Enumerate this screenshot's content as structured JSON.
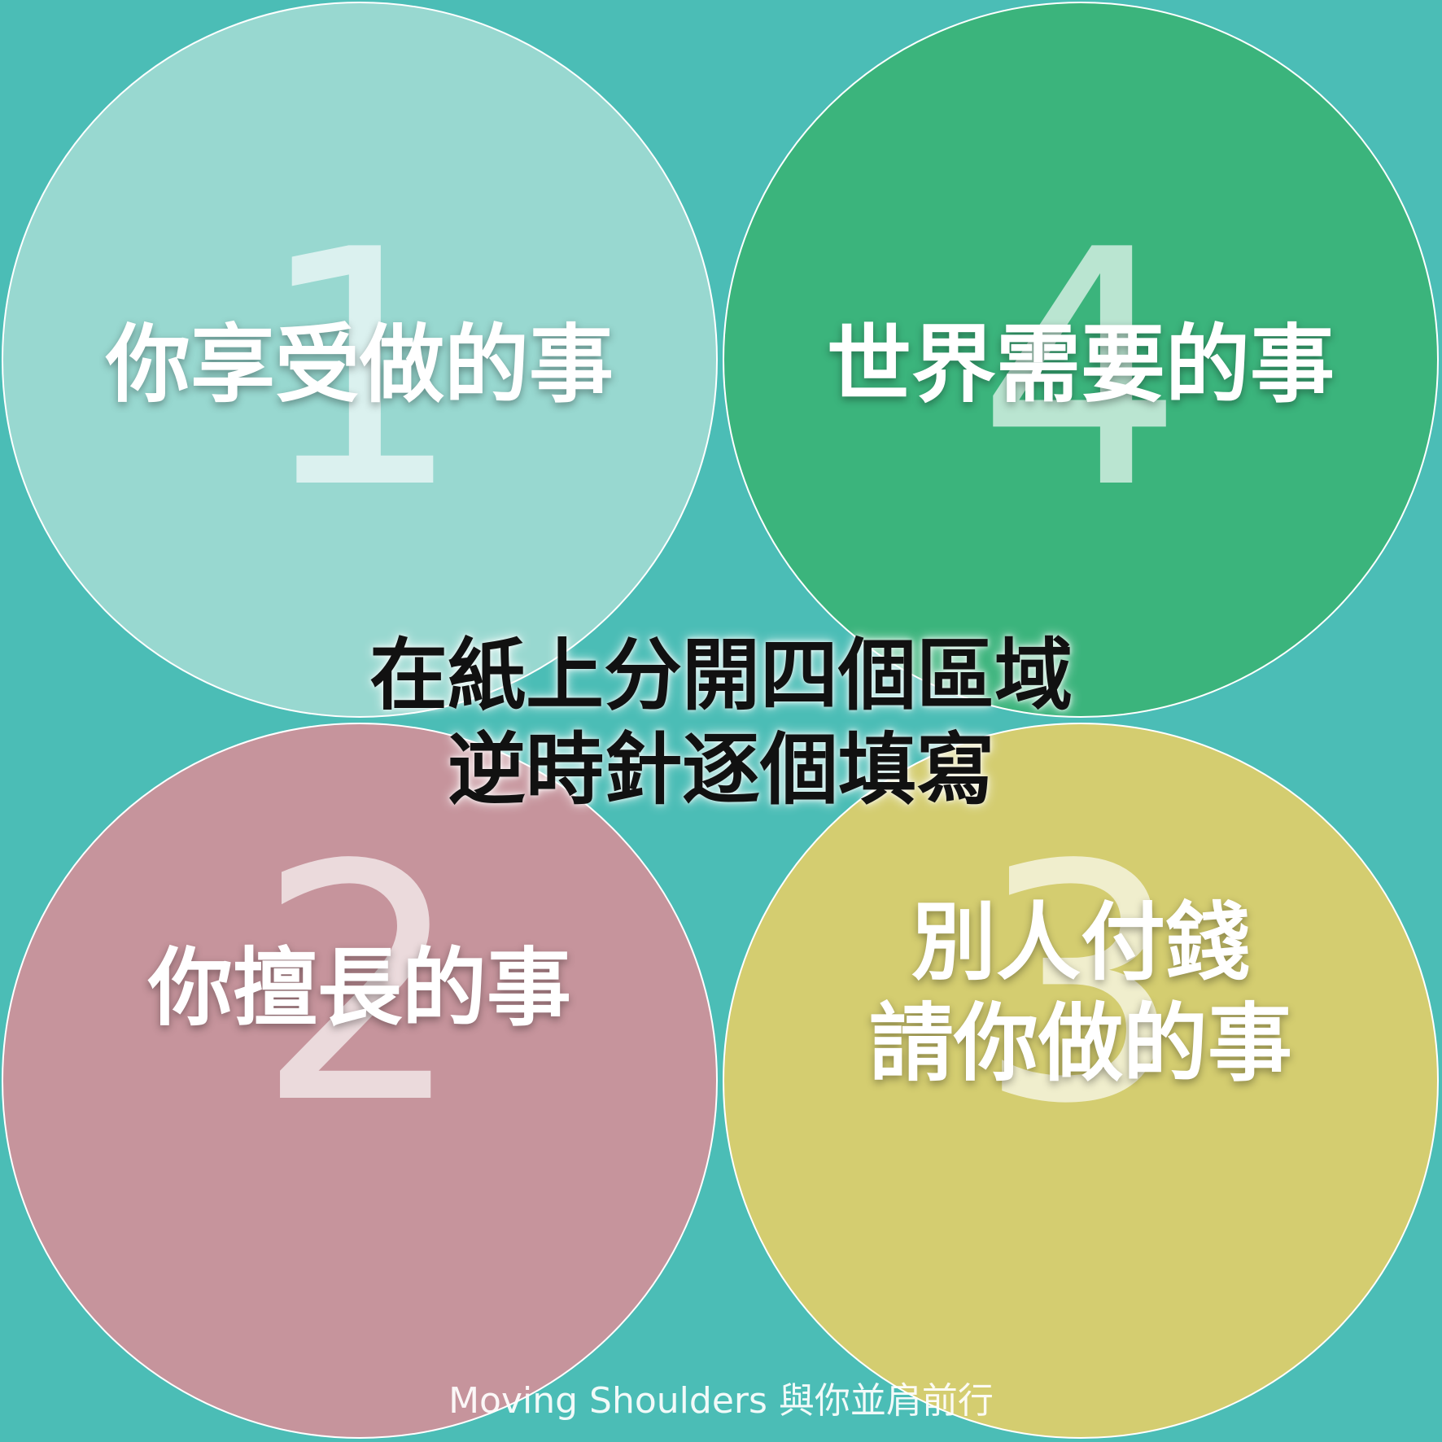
{
  "colors": {
    "background": "#4bbdb6",
    "circle_1": "#98d8d0",
    "circle_2": "#c6949c",
    "circle_3": "#d4cd70",
    "circle_4": "#3bb47c"
  },
  "circles": {
    "c1": {
      "number": "1",
      "label": "你享受做的事"
    },
    "c4": {
      "number": "4",
      "label": "世界需要的事"
    },
    "c2": {
      "number": "2",
      "label": "你擅長的事"
    },
    "c3": {
      "number": "3",
      "label_line1": "別人付錢",
      "label_line2": "請你做的事"
    }
  },
  "center": {
    "line1": "在紙上分開四個區域",
    "line2": "逆時針逐個填寫"
  },
  "footer": "Moving Shoulders 與你並肩前行"
}
